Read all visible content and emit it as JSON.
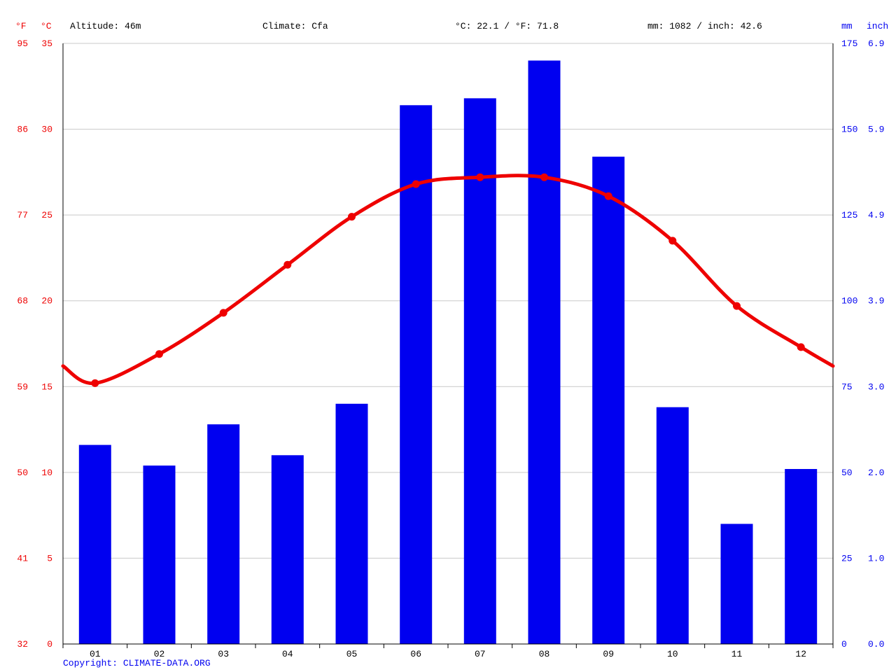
{
  "header": {
    "fahrenheit_label": "°F",
    "celsius_label": "°C",
    "altitude": "Altitude: 46m",
    "climate": "Climate: Cfa",
    "temp_summary": "°C: 22.1 / °F: 71.8",
    "precip_summary": "mm: 1082 / inch: 42.6",
    "mm_label": "mm",
    "inch_label": "inch"
  },
  "footer": {
    "copyright_prefix": "Copyright: ",
    "copyright_link": "CLIMATE-DATA.ORG"
  },
  "colors": {
    "temperature": "#ee0000",
    "precipitation": "#0000f0",
    "grid": "#c9c9c9",
    "axis_black": "#000000",
    "month_text": "#000000"
  },
  "chart_data": {
    "type": "bar",
    "subtype": "climograph (bar precipitation + line temperature)",
    "categories": [
      "01",
      "02",
      "03",
      "04",
      "05",
      "06",
      "07",
      "08",
      "09",
      "10",
      "11",
      "12"
    ],
    "series": [
      {
        "name": "Precipitation (mm)",
        "type": "bar",
        "values": [
          58,
          52,
          64,
          55,
          70,
          157,
          159,
          170,
          142,
          69,
          35,
          51
        ]
      },
      {
        "name": "Temperature (°C)",
        "type": "line",
        "values": [
          15.2,
          16.9,
          19.3,
          22.1,
          24.9,
          26.8,
          27.2,
          27.2,
          26.1,
          23.5,
          19.7,
          17.3
        ],
        "left_edge_value": 16.2,
        "right_edge_value": 16.2
      }
    ],
    "axes": {
      "temp_c_ticks": [
        0,
        5,
        10,
        15,
        20,
        25,
        30,
        35
      ],
      "temp_f_ticks": [
        32,
        41,
        50,
        59,
        68,
        77,
        86,
        95
      ],
      "precip_mm_ticks": [
        0,
        25,
        50,
        75,
        100,
        125,
        150,
        175
      ],
      "precip_inch_ticks": [
        "0.0",
        "1.0",
        "2.0",
        "3.0",
        "3.9",
        "4.9",
        "5.9",
        "6.9"
      ],
      "temp_c_range": [
        0,
        35
      ],
      "precip_mm_range": [
        0,
        175
      ]
    },
    "grid": true,
    "legend": "none"
  }
}
